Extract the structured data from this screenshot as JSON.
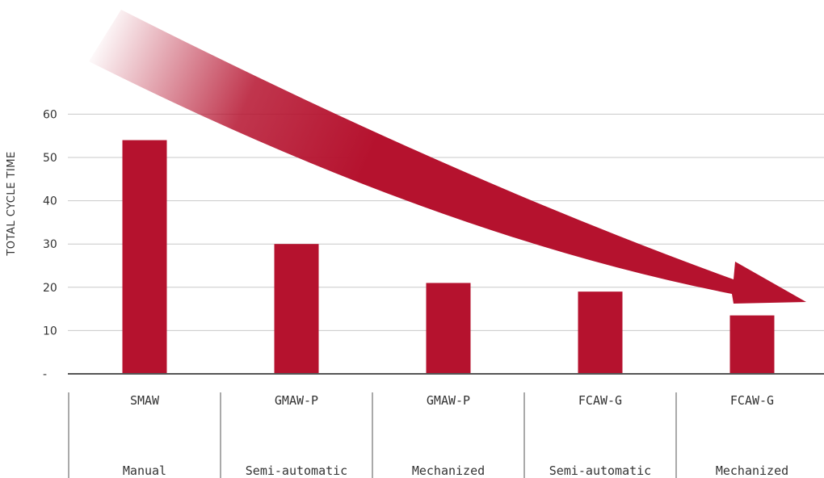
{
  "chart_data": {
    "type": "bar",
    "ylabel": "TOTAL CYCLE TIME",
    "ylim": [
      0,
      60
    ],
    "yticks": [
      {
        "value": 0,
        "label": "-"
      },
      {
        "value": 10,
        "label": "10"
      },
      {
        "value": 20,
        "label": "20"
      },
      {
        "value": 30,
        "label": "30"
      },
      {
        "value": 40,
        "label": "40"
      },
      {
        "value": 50,
        "label": "50"
      },
      {
        "value": 60,
        "label": "60"
      }
    ],
    "categories": [
      "SMAW",
      "GMAW-P",
      "GMAW-P",
      "FCAW-G",
      "FCAW-G"
    ],
    "subcategories": [
      "Manual",
      "Semi-automatic",
      "Mechanized",
      "Semi-automatic",
      "Mechanized"
    ],
    "values": [
      54,
      30,
      21,
      19,
      13.5
    ],
    "grid": true,
    "bar_color": "#b5122e",
    "annotation": "decreasing-trend-arrow"
  }
}
